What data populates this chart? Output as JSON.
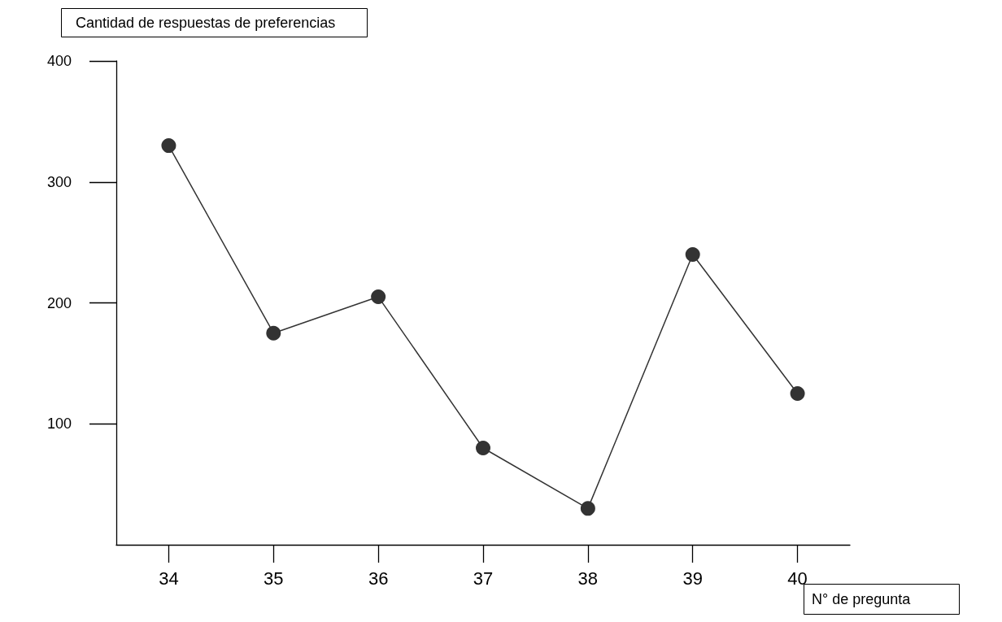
{
  "chart_data": {
    "type": "line",
    "xlabel": "N° de pregunta",
    "ylabel": "Cantidad de respuestas de preferencias",
    "categories": [
      "34",
      "35",
      "36",
      "37",
      "38",
      "39",
      "40"
    ],
    "series": [
      {
        "color": "#333333",
        "values": [
          330,
          175,
          205,
          80,
          30,
          240,
          125
        ]
      }
    ],
    "ylim": [
      0,
      400
    ],
    "yticks": [
      100,
      200,
      300,
      400
    ],
    "grid": false,
    "marker": "circle",
    "line_style": "solid"
  }
}
